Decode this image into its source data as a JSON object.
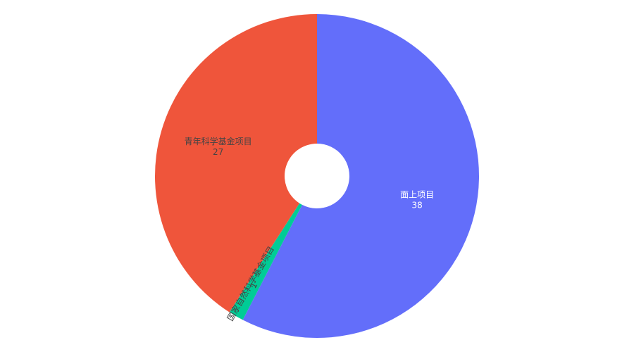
{
  "chart_data": {
    "type": "pie",
    "hole": true,
    "title": "",
    "slices": [
      {
        "label": "面上项目",
        "value": 38,
        "color": "#636efa",
        "text_color": "#ffffff"
      },
      {
        "label": "国家自然科学基金项目",
        "value": 1,
        "color": "#00cc96",
        "text_color": "#444444"
      },
      {
        "label": "青年科学基金项目",
        "value": 27,
        "color": "#ef553b",
        "text_color": "#444444"
      }
    ]
  }
}
